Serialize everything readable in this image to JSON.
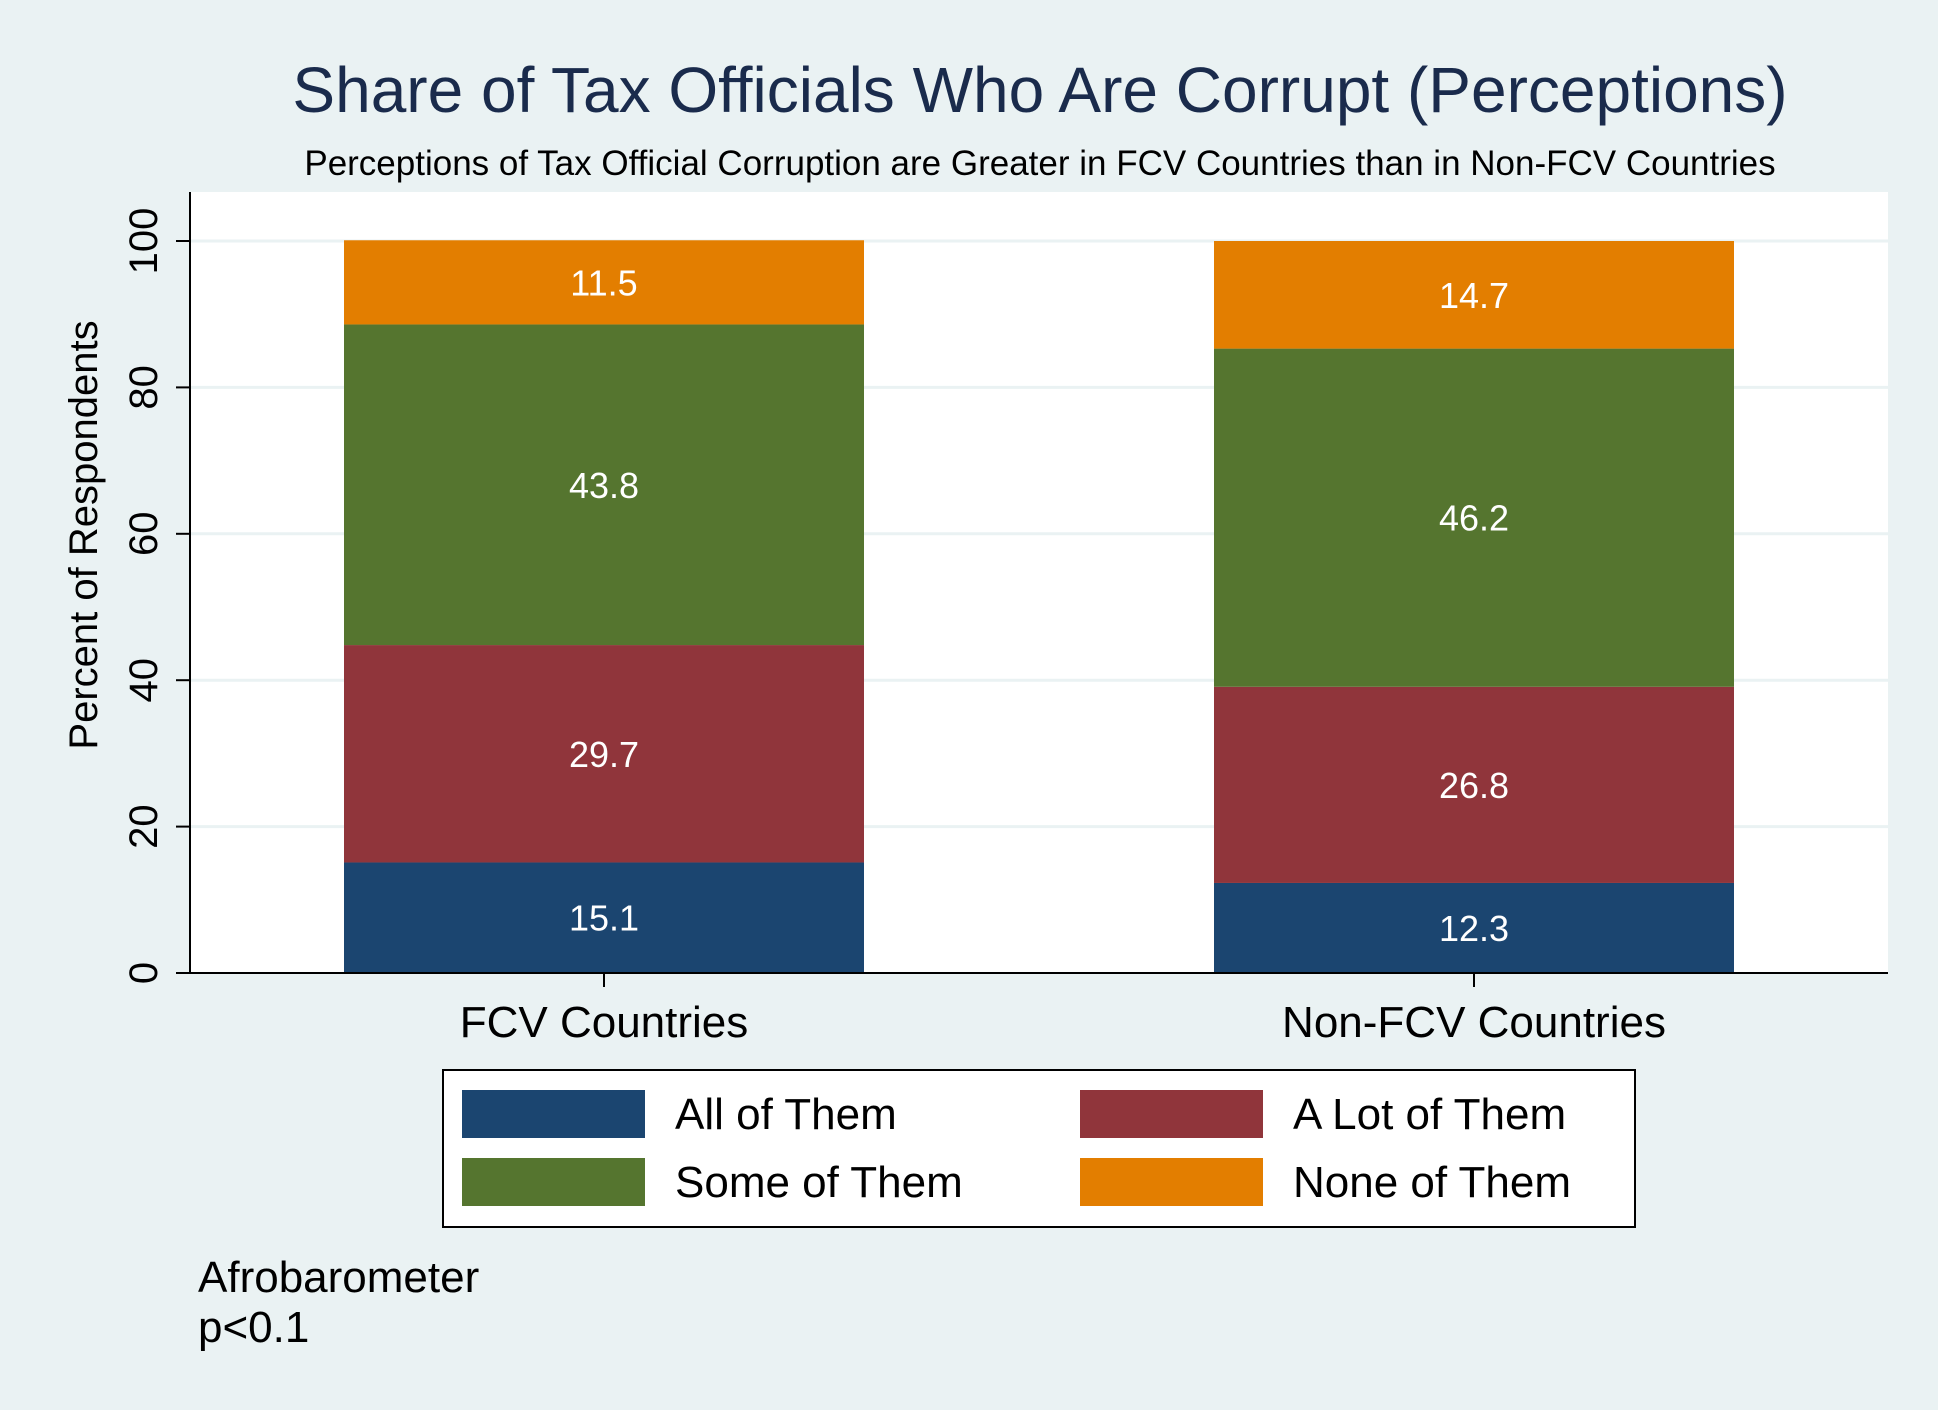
{
  "chart_data": {
    "type": "bar",
    "stacked": true,
    "title": "Share of Tax Officials Who Are Corrupt (Perceptions)",
    "subtitle": "Perceptions of Tax Official Corruption are Greater in FCV Countries than in Non-FCV Countries",
    "ylabel": "Percent of Respondents",
    "xlabel": "",
    "ylim": [
      0,
      100
    ],
    "yticks": [
      0,
      20,
      40,
      60,
      80,
      100
    ],
    "categories": [
      "FCV Countries",
      "Non-FCV Countries"
    ],
    "series": [
      {
        "name": "All of Them",
        "values": [
          15.1,
          12.3
        ],
        "color": "#1b4570"
      },
      {
        "name": "A Lot of Them",
        "values": [
          29.7,
          26.8
        ],
        "color": "#90353b"
      },
      {
        "name": "Some of Them",
        "values": [
          43.8,
          46.2
        ],
        "color": "#55752f"
      },
      {
        "name": "None of Them",
        "values": [
          11.5,
          14.7
        ],
        "color": "#e37e00"
      }
    ],
    "grid": true,
    "legend_position": "bottom",
    "notes": [
      "Afrobarometer",
      "p<0.1"
    ]
  },
  "colors": {
    "background": "#eaf2f3",
    "plot_background": "#ffffff",
    "gridline": "#eaf2f3",
    "title": "#1a2b4c"
  }
}
